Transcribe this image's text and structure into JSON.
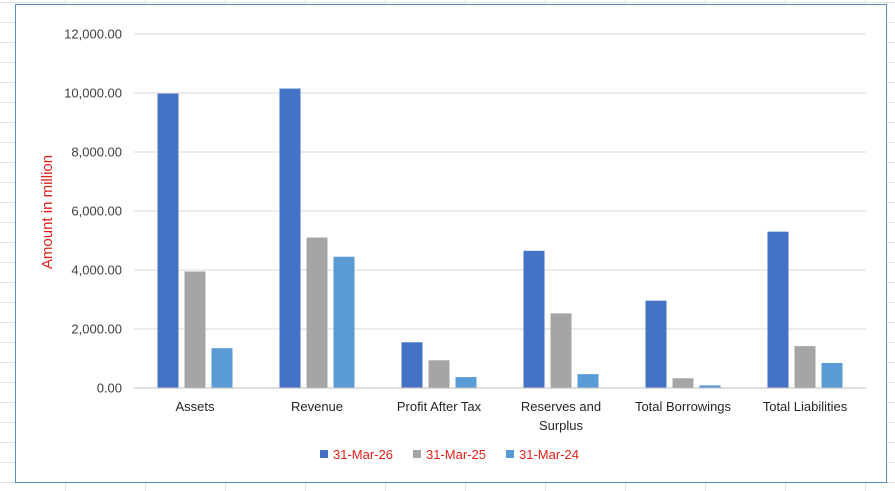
{
  "colors": {
    "accent_label": "#e0211a",
    "frame_border": "#5b8cc6",
    "gridline": "#d9d9d9",
    "axis_line": "#bfbfbf"
  },
  "chart_data": {
    "type": "bar",
    "ylabel": "Amount in million",
    "xlabel": "",
    "ylim": [
      0,
      12000
    ],
    "yticks": [
      "0.00",
      "2,000.00",
      "4,000.00",
      "6,000.00",
      "8,000.00",
      "10,000.00",
      "12,000.00"
    ],
    "grid": true,
    "legend_position": "bottom",
    "categories": [
      [
        "Assets"
      ],
      [
        "Revenue"
      ],
      [
        "Profit After Tax"
      ],
      [
        "Reserves and",
        "Surplus"
      ],
      [
        "Total Borrowings"
      ],
      [
        "Total Liabilities"
      ]
    ],
    "series": [
      {
        "name": "31-Mar-26",
        "color": "#4472c4",
        "values": [
          9980,
          10150,
          1550,
          4650,
          2960,
          5300
        ]
      },
      {
        "name": "31-Mar-25",
        "color": "#a5a5a5",
        "values": [
          3950,
          5100,
          940,
          2530,
          330,
          1420
        ]
      },
      {
        "name": "31-Mar-24",
        "color": "#5b9bd5",
        "values": [
          1350,
          4450,
          370,
          470,
          90,
          850
        ]
      }
    ]
  }
}
